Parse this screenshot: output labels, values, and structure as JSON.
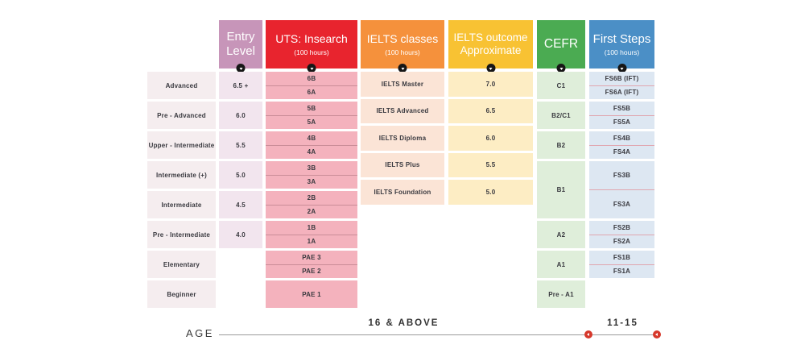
{
  "columns": {
    "levels": {
      "cell_bg": "#f5edef",
      "cells": [
        "Advanced",
        "Pre - Advanced",
        "Upper - Intermediate",
        "Intermediate (+)",
        "Intermediate",
        "Pre - Intermediate",
        "Elementary",
        "Beginner"
      ]
    },
    "entry": {
      "header": {
        "title": "Entry Level",
        "bg": "#c795b9"
      },
      "cell_bg": "#f2e5ee",
      "cells": [
        "6.5 +",
        "6.0",
        "5.5",
        "5.0",
        "4.5",
        "4.0"
      ]
    },
    "uts": {
      "header": {
        "title": "UTS: Insearch",
        "subtitle": "(100 hours)",
        "bg": "#e8242e"
      },
      "cell_bg": "#f4b2bd",
      "rows": [
        [
          "6B",
          "6A"
        ],
        [
          "5B",
          "5A"
        ],
        [
          "4B",
          "4A"
        ],
        [
          "3B",
          "3A"
        ],
        [
          "2B",
          "2A"
        ],
        [
          "1B",
          "1A"
        ],
        [
          "PAE 3",
          "PAE 2"
        ],
        [
          "PAE 1"
        ]
      ]
    },
    "ielts_classes": {
      "header": {
        "title": "IELTS classes",
        "subtitle": "(100 hours)",
        "bg": "#f5913c"
      },
      "cell_bg": "#fbe4d6",
      "cells": [
        "IELTS Master",
        "IELTS Advanced",
        "IELTS Diploma",
        "IELTS Plus",
        "IELTS Foundation"
      ]
    },
    "ielts_outcome": {
      "header": {
        "title": "IELTS outcome Approximate",
        "bg": "#f8c233"
      },
      "cell_bg": "#fdedc4",
      "cells": [
        "7.0",
        "6.5",
        "6.0",
        "5.5",
        "5.0"
      ]
    },
    "cefr": {
      "header": {
        "title": "CEFR",
        "bg": "#4bab52"
      },
      "cell_bg": "#dfeeda",
      "cells": [
        "C1",
        "B2/C1",
        "B2",
        "B1",
        "A2",
        "A1",
        "Pre - A1"
      ]
    },
    "first_steps": {
      "header": {
        "title": "First Steps",
        "subtitle": "(100 hours)",
        "bg": "#4b8fc6"
      },
      "cell_bg": "#dde7f2",
      "rows": [
        [
          "FS6B (IFT)",
          "FS6A (IFT)"
        ],
        [
          "FS5B",
          "FS5A"
        ],
        [
          "FS4B",
          "FS4A"
        ],
        [
          "FS3B",
          "FS3A"
        ],
        [
          "FS2B",
          "FS2A"
        ],
        [
          "FS1B",
          "FS1A"
        ]
      ]
    }
  },
  "age_axis": {
    "label": "AGE",
    "segments": [
      {
        "label": "16 & ABOVE"
      },
      {
        "label": "11-15"
      }
    ],
    "line_color": "#9b9b9b",
    "marker_color": "#d6382b"
  }
}
